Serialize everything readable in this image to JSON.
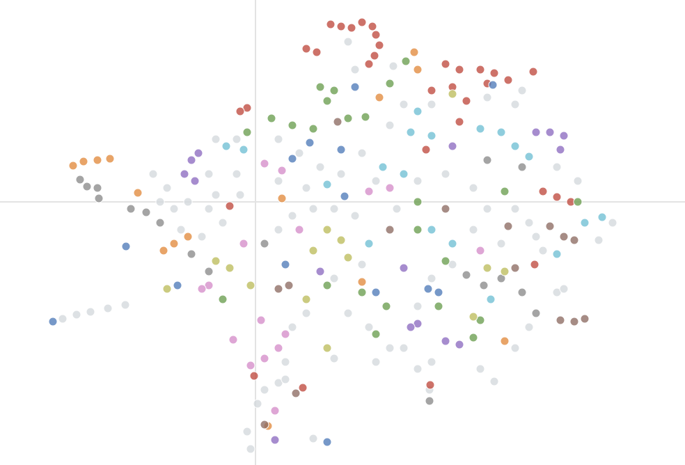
{
  "chart_data": {
    "type": "scatter",
    "xlim": [
      -3.67,
      6.17
    ],
    "ylim": [
      -3.78,
      2.9
    ],
    "zero_lines": true,
    "series": [
      {
        "color": "#d3d8dd",
        "x": [
          -2.77,
          -2.57,
          -2.37,
          -2.12,
          -1.87,
          -1.27,
          -1.17,
          -1.07,
          -1.37,
          -1.47,
          -0.67,
          -0.57,
          -0.47,
          -0.67,
          -0.27,
          -0.22,
          -0.57,
          -0.27,
          -0.97,
          -0.77,
          0.33,
          0.63,
          0.93,
          1.23,
          1.53,
          0.33,
          0.73,
          1.13,
          1.43,
          1.73,
          0.53,
          0.83,
          0.33,
          1.53,
          1.13,
          0.73,
          1.33,
          1.63,
          1.93,
          0.53,
          0.43,
          1.13,
          0.03,
          0.13,
          0.33,
          0.43,
          -0.12,
          -0.07,
          0.83,
          2.03,
          2.33,
          2.73,
          3.13,
          3.33,
          3.73,
          3.93,
          4.03,
          4.13,
          3.53,
          3.13,
          2.83,
          2.53,
          2.33,
          2.13,
          2.53,
          3.23,
          3.43,
          3.73,
          3.93,
          4.33,
          4.93,
          5.13,
          4.63,
          4.33,
          2.53,
          2.13,
          1.93,
          3.33,
          3.73,
          3.83,
          1.98,
          1.43,
          1.33,
          2.5,
          2.33,
          1.73,
          4.43
        ],
        "y": [
          -1.68,
          -1.62,
          -1.58,
          -1.53,
          -1.48,
          0.2,
          -0.1,
          -0.4,
          0.0,
          0.4,
          0.4,
          0.1,
          -0.3,
          -0.1,
          0.4,
          0.1,
          0.9,
          0.9,
          0.0,
          -0.5,
          0.9,
          0.7,
          0.5,
          0.4,
          0.7,
          0.3,
          0.2,
          -0.1,
          -0.2,
          0.3,
          -0.2,
          -0.1,
          -0.4,
          -0.9,
          -1.1,
          -1.6,
          -1.6,
          -1.8,
          -2.1,
          -1.8,
          -2.3,
          -2.25,
          -2.9,
          -2.7,
          -2.6,
          -2.55,
          -3.3,
          -3.55,
          -3.4,
          -0.1,
          0.3,
          0.4,
          0.2,
          -0.1,
          -0.1,
          -0.3,
          -0.5,
          -0.7,
          -0.6,
          -0.4,
          -0.9,
          -1.1,
          -1.5,
          -2.1,
          -2.3,
          -2.4,
          -2.58,
          -2.1,
          -1.8,
          -1.3,
          -0.55,
          -0.3,
          0.3,
          0.5,
          1.4,
          1.4,
          1.1,
          1.5,
          1.4,
          1.6,
          1.95,
          1.9,
          2.3,
          -2.7,
          -2.4,
          -2.3,
          -1.25
        ]
      },
      {
        "color": "#bf4a3f",
        "x": [
          1.08,
          1.23,
          1.38,
          1.53,
          1.68,
          1.73,
          1.78,
          1.71,
          1.63,
          0.88,
          0.73,
          2.73,
          2.93,
          3.23,
          3.43,
          3.63,
          2.53,
          2.83,
          3.03,
          2.93,
          3.33,
          3.99,
          -0.12,
          -0.22,
          4.13,
          4.33,
          4.53,
          4.01,
          -0.02,
          2.51,
          0.68,
          2.45,
          -0.37
        ],
        "y": [
          2.55,
          2.52,
          2.5,
          2.58,
          2.52,
          2.4,
          2.25,
          2.1,
          1.98,
          2.15,
          2.2,
          1.98,
          1.9,
          1.9,
          1.85,
          1.75,
          1.6,
          1.65,
          1.45,
          1.15,
          1.7,
          1.87,
          1.35,
          1.3,
          0.15,
          0.07,
          0.0,
          -0.9,
          -2.5,
          -2.63,
          -2.67,
          0.75,
          -0.06
        ]
      },
      {
        "color": "#6a9e4f",
        "x": [
          0.93,
          1.13,
          1.03,
          0.23,
          0.53,
          0.83,
          1.33,
          1.58,
          1.93,
          2.16,
          -0.12,
          2.33,
          2.73,
          1.88,
          1.73,
          3.13,
          3.23,
          -0.47,
          2.33,
          1.53,
          3.58,
          4.63,
          1.03,
          2.63
        ],
        "y": [
          1.65,
          1.6,
          1.45,
          1.2,
          1.1,
          1.05,
          1.2,
          1.22,
          1.7,
          2.02,
          1.0,
          0.0,
          -0.85,
          -1.5,
          -1.9,
          -1.95,
          -1.7,
          -1.4,
          -0.4,
          -1.3,
          0.15,
          0.0,
          -1.2,
          -1.5
        ]
      },
      {
        "color": "#4f7bb8",
        "x": [
          1.43,
          0.78,
          1.23,
          0.53,
          -1.86,
          -2.91,
          1.03,
          2.48,
          2.63,
          1.73,
          3.41,
          1.28,
          0.43,
          -1.12
        ],
        "y": [
          1.65,
          0.85,
          0.75,
          0.62,
          -0.64,
          -1.72,
          -3.45,
          -1.25,
          -1.3,
          -1.3,
          1.68,
          0.08,
          -0.9,
          -1.2
        ]
      },
      {
        "color": "#8d6bc0",
        "x": [
          -0.92,
          -0.82,
          -0.87,
          -1.02,
          4.43,
          4.38,
          4.23,
          4.03,
          2.33,
          2.23,
          2.93,
          2.73,
          0.28,
          2.13,
          0.93,
          2.83
        ],
        "y": [
          0.6,
          0.7,
          0.3,
          0.4,
          0.95,
          0.75,
          1.0,
          1.0,
          -1.75,
          -1.8,
          -2.05,
          -2.0,
          -3.42,
          -0.95,
          -1.0,
          0.8
        ]
      },
      {
        "color": "#6fbfd3",
        "x": [
          2.23,
          2.53,
          3.23,
          3.53,
          3.73,
          3.93,
          1.83,
          2.13,
          2.53,
          2.83,
          4.73,
          4.98,
          -0.42,
          -0.17,
          3.38,
          4.33,
          1.03,
          1.63,
          2.33
        ],
        "y": [
          1.0,
          0.95,
          1.05,
          1.0,
          0.8,
          0.65,
          0.5,
          0.4,
          -0.4,
          -0.6,
          -0.3,
          -0.22,
          0.8,
          0.75,
          -1.4,
          -0.75,
          0.25,
          -0.6,
          1.3
        ]
      },
      {
        "color": "#e28b3d",
        "x": [
          -2.62,
          -2.47,
          -2.27,
          -2.09,
          -1.69,
          -1.17,
          -1.32,
          -0.97,
          2.28,
          2.33,
          0.38,
          3.58,
          0.18,
          1.78,
          1.53
        ],
        "y": [
          0.52,
          0.58,
          0.6,
          0.62,
          0.13,
          -0.6,
          -0.7,
          -0.5,
          2.15,
          1.9,
          0.05,
          -2.0,
          -3.22,
          1.5,
          -1.15
        ]
      },
      {
        "color": "#8a8a8a",
        "x": [
          -2.52,
          -2.42,
          -2.27,
          -2.25,
          -1.79,
          -1.57,
          -1.37,
          -0.92,
          -0.67,
          3.03,
          3.28,
          3.53,
          3.83,
          4.03,
          3.33,
          0.13,
          2.5,
          3.83
        ],
        "y": [
          0.32,
          0.22,
          0.2,
          0.05,
          -0.1,
          -0.15,
          -0.3,
          -0.75,
          -1.0,
          -1.05,
          -1.2,
          -1.1,
          -1.3,
          -1.6,
          0.6,
          -0.6,
          -2.86,
          0.5
        ]
      },
      {
        "color": "#8d6c63",
        "x": [
          3.73,
          4.23,
          4.43,
          4.58,
          4.58,
          4.73,
          4.38,
          0.48,
          0.33,
          1.93,
          3.63,
          2.73,
          1.18,
          0.13,
          0.58
        ],
        "y": [
          -0.95,
          -0.35,
          -0.5,
          -0.55,
          -1.72,
          -1.68,
          -1.7,
          -1.2,
          -1.25,
          -0.4,
          -0.35,
          -0.1,
          1.15,
          -3.2,
          -2.75
        ]
      },
      {
        "color": "#d58dc9",
        "x": [
          0.13,
          0.38,
          0.13,
          -0.07,
          0.33,
          0.43,
          0.08,
          -0.32,
          -0.67,
          -0.77,
          -0.17,
          1.63,
          1.93,
          0.63,
          3.23,
          0.28
        ],
        "y": [
          0.55,
          0.45,
          -2.25,
          -2.35,
          -2.1,
          -1.9,
          -1.7,
          -1.98,
          -1.2,
          -1.25,
          -0.6,
          0.15,
          0.2,
          -0.4,
          -0.7,
          -3.0
        ]
      },
      {
        "color": "#bdbd5c",
        "x": [
          1.03,
          1.23,
          0.83,
          1.33,
          -0.07,
          -0.37,
          -0.57,
          2.83,
          3.33,
          3.58,
          3.13,
          0.73,
          1.03,
          -1.27
        ],
        "y": [
          -0.4,
          -0.55,
          -0.7,
          -0.8,
          -1.2,
          -0.95,
          -0.85,
          1.55,
          -0.95,
          -1.0,
          -1.65,
          -1.4,
          -2.1,
          -1.25
        ]
      }
    ]
  }
}
